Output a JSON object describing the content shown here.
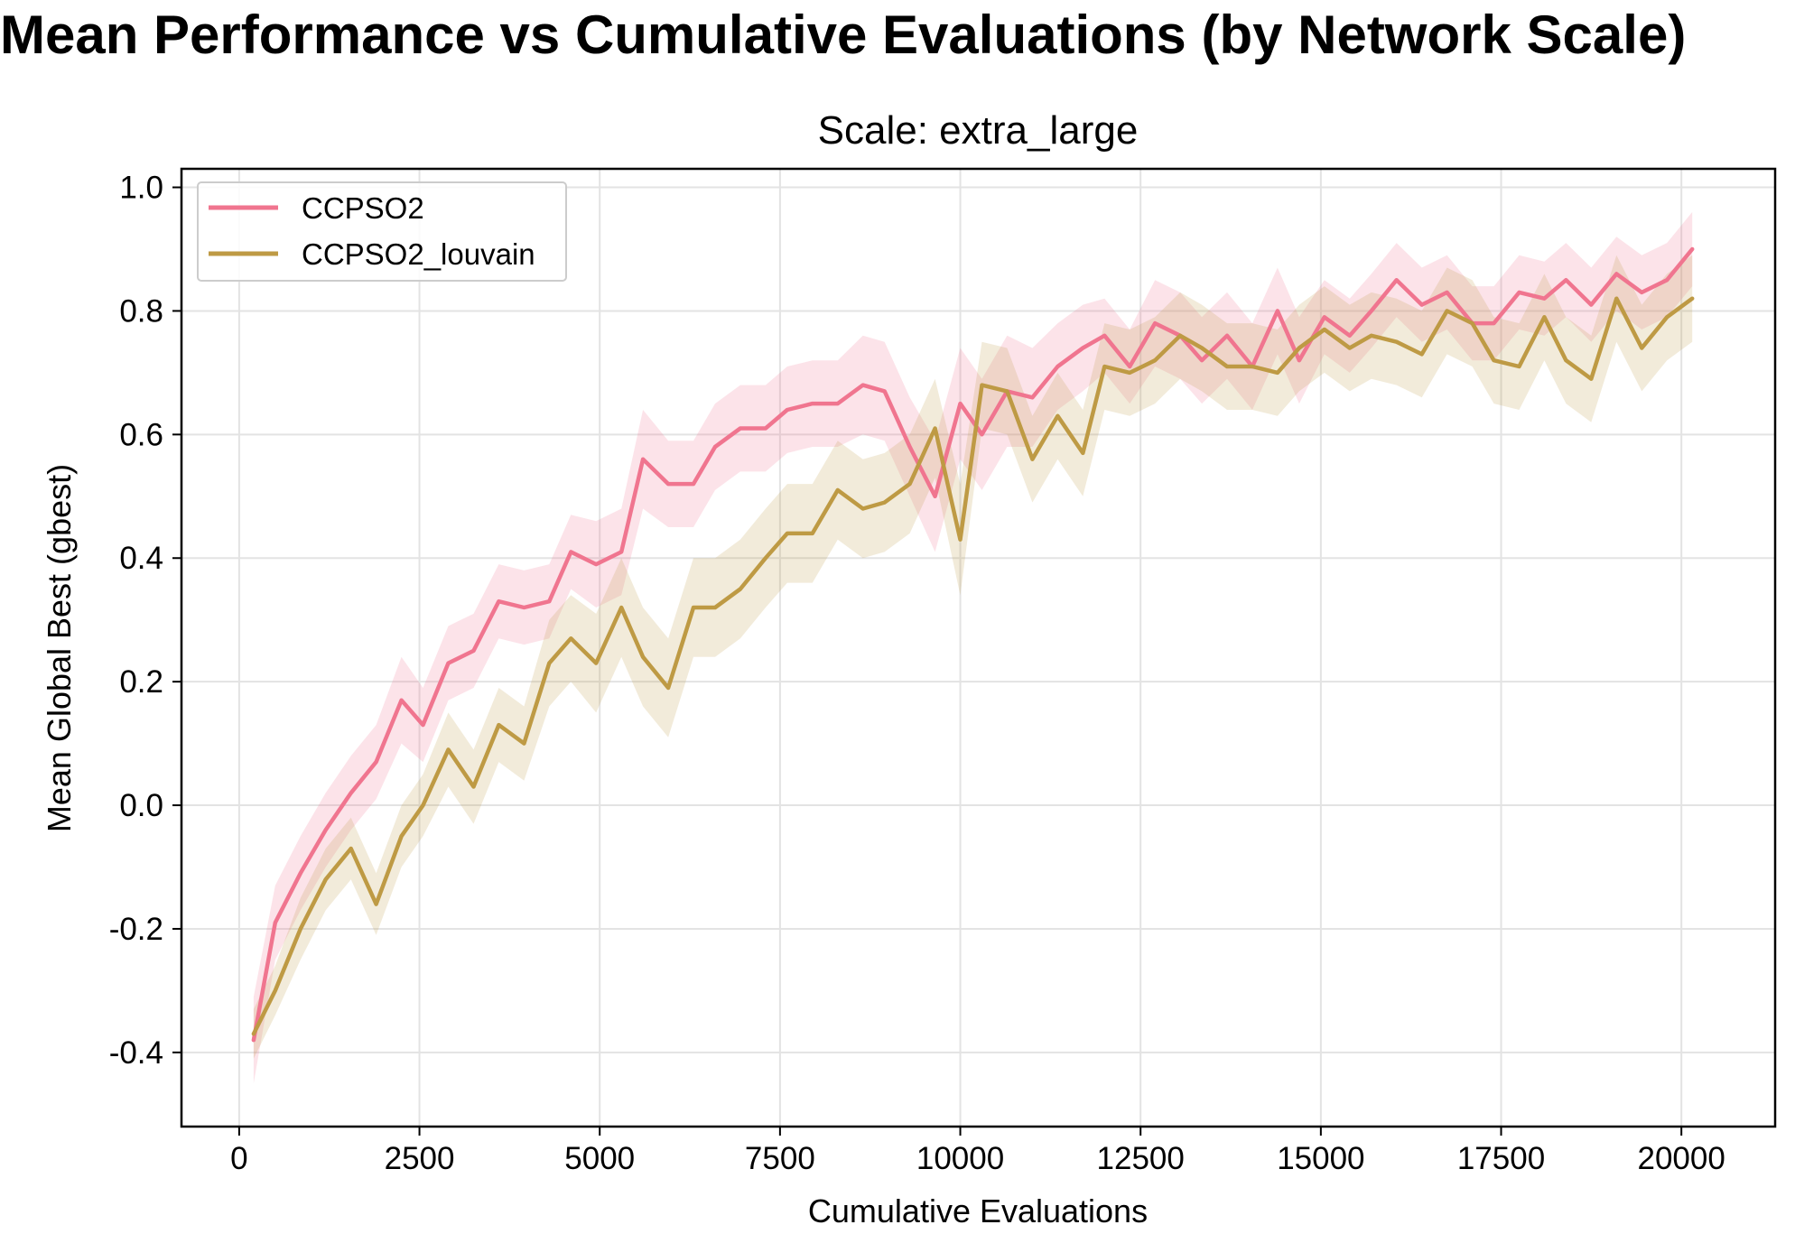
{
  "figure": {
    "suptitle": "Mean Performance vs Cumulative Evaluations (by Network Scale)"
  },
  "chart_data": {
    "type": "line",
    "title": "Scale: extra_large",
    "xlabel": "Cumulative Evaluations",
    "ylabel": "Mean Global Best (gbest)",
    "xlim": [
      -800,
      21300
    ],
    "ylim": [
      -0.52,
      1.03
    ],
    "xticks": [
      0,
      2500,
      5000,
      7500,
      10000,
      12500,
      15000,
      17500,
      20000
    ],
    "yticks": [
      -0.4,
      -0.2,
      0.0,
      0.2,
      0.4,
      0.6,
      0.8,
      1.0
    ],
    "xtick_labels": [
      "0",
      "2500",
      "5000",
      "7500",
      "10000",
      "12500",
      "15000",
      "17500",
      "20000"
    ],
    "ytick_labels": [
      "-0.4",
      "-0.2",
      "0.0",
      "0.2",
      "0.4",
      "0.6",
      "0.8",
      "1.0"
    ],
    "grid": true,
    "legend_position": "upper-left",
    "x": [
      200,
      500,
      850,
      1200,
      1550,
      1900,
      2250,
      2550,
      2900,
      3250,
      3600,
      3950,
      4300,
      4600,
      4950,
      5300,
      5600,
      5950,
      6300,
      6600,
      6950,
      7300,
      7600,
      7950,
      8300,
      8650,
      8950,
      9300,
      9650,
      10000,
      10300,
      10650,
      11000,
      11350,
      11700,
      12000,
      12350,
      12700,
      13050,
      13350,
      13700,
      14050,
      14400,
      14700,
      15050,
      15400,
      15700,
      16050,
      16400,
      16750,
      17100,
      17400,
      17750,
      18100,
      18400,
      18750,
      19100,
      19450,
      19800,
      20150
    ],
    "series": [
      {
        "name": "CCPSO2",
        "color": "#f0758f",
        "values": [
          -0.38,
          -0.19,
          -0.11,
          -0.04,
          0.02,
          0.07,
          0.17,
          0.13,
          0.23,
          0.25,
          0.33,
          0.32,
          0.33,
          0.41,
          0.39,
          0.41,
          0.56,
          0.52,
          0.52,
          0.58,
          0.61,
          0.61,
          0.64,
          0.65,
          0.65,
          0.68,
          0.67,
          0.58,
          0.5,
          0.65,
          0.6,
          0.67,
          0.66,
          0.71,
          0.74,
          0.76,
          0.71,
          0.78,
          0.76,
          0.72,
          0.76,
          0.71,
          0.8,
          0.72,
          0.79,
          0.76,
          0.8,
          0.85,
          0.81,
          0.83,
          0.78,
          0.78,
          0.83,
          0.82,
          0.85,
          0.81,
          0.86,
          0.83,
          0.85,
          0.9
        ],
        "spread": [
          0.07,
          0.06,
          0.06,
          0.06,
          0.06,
          0.06,
          0.07,
          0.06,
          0.06,
          0.06,
          0.06,
          0.06,
          0.06,
          0.06,
          0.07,
          0.07,
          0.08,
          0.07,
          0.07,
          0.07,
          0.07,
          0.07,
          0.07,
          0.07,
          0.07,
          0.08,
          0.08,
          0.08,
          0.09,
          0.09,
          0.09,
          0.09,
          0.08,
          0.07,
          0.07,
          0.06,
          0.06,
          0.07,
          0.07,
          0.07,
          0.07,
          0.07,
          0.07,
          0.07,
          0.06,
          0.06,
          0.06,
          0.06,
          0.06,
          0.06,
          0.06,
          0.06,
          0.06,
          0.06,
          0.06,
          0.06,
          0.06,
          0.06,
          0.06,
          0.06
        ]
      },
      {
        "name": "CCPSO2_louvain",
        "color": "#be9a44",
        "values": [
          -0.37,
          -0.3,
          -0.2,
          -0.12,
          -0.07,
          -0.16,
          -0.05,
          0.0,
          0.09,
          0.03,
          0.13,
          0.1,
          0.23,
          0.27,
          0.23,
          0.32,
          0.24,
          0.19,
          0.32,
          0.32,
          0.35,
          0.4,
          0.44,
          0.44,
          0.51,
          0.48,
          0.49,
          0.52,
          0.61,
          0.43,
          0.68,
          0.67,
          0.56,
          0.63,
          0.57,
          0.71,
          0.7,
          0.72,
          0.76,
          0.74,
          0.71,
          0.71,
          0.7,
          0.74,
          0.77,
          0.74,
          0.76,
          0.75,
          0.73,
          0.8,
          0.78,
          0.72,
          0.71,
          0.79,
          0.72,
          0.69,
          0.82,
          0.74,
          0.79,
          0.82
        ],
        "spread": [
          0.04,
          0.04,
          0.05,
          0.05,
          0.05,
          0.05,
          0.05,
          0.05,
          0.06,
          0.06,
          0.06,
          0.06,
          0.07,
          0.07,
          0.08,
          0.08,
          0.08,
          0.08,
          0.08,
          0.08,
          0.08,
          0.08,
          0.08,
          0.08,
          0.08,
          0.08,
          0.08,
          0.08,
          0.08,
          0.09,
          0.07,
          0.07,
          0.07,
          0.07,
          0.07,
          0.07,
          0.07,
          0.07,
          0.07,
          0.07,
          0.07,
          0.07,
          0.07,
          0.07,
          0.07,
          0.07,
          0.07,
          0.07,
          0.07,
          0.07,
          0.07,
          0.07,
          0.07,
          0.07,
          0.07,
          0.07,
          0.07,
          0.07,
          0.07,
          0.07
        ]
      }
    ]
  }
}
